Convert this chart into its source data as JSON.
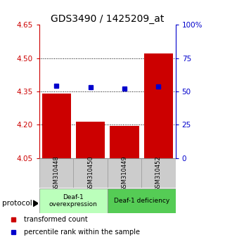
{
  "title": "GDS3490 / 1425209_at",
  "samples": [
    "GSM310448",
    "GSM310450",
    "GSM310449",
    "GSM310452"
  ],
  "bar_values": [
    4.34,
    4.215,
    4.195,
    4.52
  ],
  "dot_values_mapped": [
    4.375,
    4.37,
    4.362,
    4.373
  ],
  "ylim": [
    4.05,
    4.65
  ],
  "yticks_left": [
    4.05,
    4.2,
    4.35,
    4.5,
    4.65
  ],
  "yticks_right": [
    0,
    25,
    50,
    75,
    100
  ],
  "bar_color": "#cc0000",
  "dot_color": "#0000cc",
  "bar_bottom": 4.05,
  "bar_width": 0.85,
  "group1_label": "Deaf-1\noverexpression",
  "group2_label": "Deaf-1 deficiency",
  "group1_color": "#bbffbb",
  "group2_color": "#55cc55",
  "label_bar_color": "#cc0000",
  "label_dot_color": "#0000cc",
  "legend_bar_text": "transformed count",
  "legend_dot_text": "percentile rank within the sample",
  "protocol_text": "protocol",
  "title_fontsize": 10,
  "grid_lines": [
    4.2,
    4.35,
    4.5
  ],
  "sample_box_color": "#cccccc",
  "sample_box_edge": "#999999"
}
